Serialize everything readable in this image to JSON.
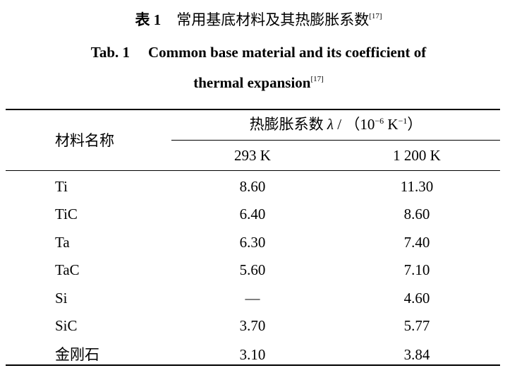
{
  "caption_cn": {
    "label": "表 1",
    "title": "常用基底材料及其热膨胀系数",
    "ref": "[17]"
  },
  "caption_en": {
    "label": "Tab. 1",
    "title_line1": "Common base material and its coefficient of",
    "title_line2": "thermal expansion",
    "ref": "[17]"
  },
  "table": {
    "header": {
      "material": "材料名称",
      "group_prefix": "热膨胀系数 ",
      "group_symbol": "λ",
      "group_mid": " / （10",
      "group_exp1": "−6",
      "group_unit": " K",
      "group_exp2": "−1",
      "group_close": "）",
      "col1": "293 K",
      "col2": "1 200 K"
    },
    "rows": [
      {
        "name": "Ti",
        "v293": "8.60",
        "v1200": "11.30"
      },
      {
        "name": "TiC",
        "v293": "6.40",
        "v1200": "8.60"
      },
      {
        "name": "Ta",
        "v293": "6.30",
        "v1200": "7.40"
      },
      {
        "name": "TaC",
        "v293": "5.60",
        "v1200": "7.10"
      },
      {
        "name": "Si",
        "v293": "—",
        "v1200": "4.60"
      },
      {
        "name": "SiC",
        "v293": "3.70",
        "v1200": "5.77"
      },
      {
        "name": "金刚石",
        "v293": "3.10",
        "v1200": "3.84"
      }
    ]
  }
}
